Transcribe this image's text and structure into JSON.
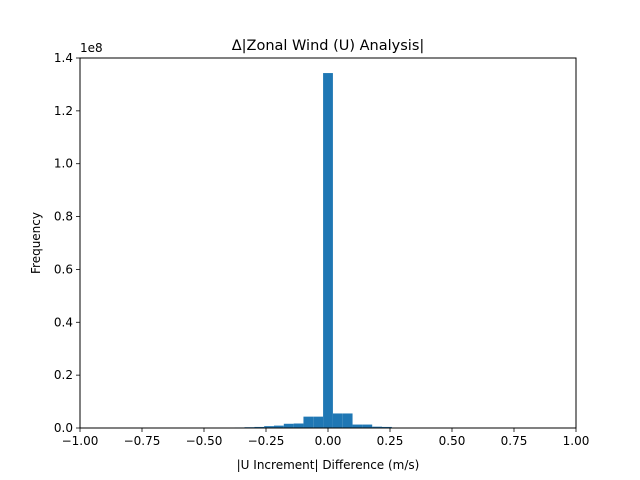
{
  "chart_data": {
    "type": "bar",
    "title": "Δ|Zonal Wind (U) Analysis|",
    "xlabel": "|U Increment| Difference (m/s)",
    "ylabel": "Frequency",
    "y_offset_label": "1e8",
    "xlim": [
      -1.0,
      1.0
    ],
    "ylim": [
      0,
      1.4
    ],
    "x_ticks": [
      -1.0,
      -0.75,
      -0.5,
      -0.25,
      0.0,
      0.25,
      0.5,
      0.75,
      1.0
    ],
    "x_tick_labels": [
      "−1.00",
      "−0.75",
      "−0.50",
      "−0.25",
      "0.00",
      "0.25",
      "0.50",
      "0.75",
      "1.00"
    ],
    "y_ticks": [
      0.0,
      0.2,
      0.4,
      0.6,
      0.8,
      1.0,
      1.2,
      1.4
    ],
    "y_tick_labels": [
      "0.0",
      "0.2",
      "0.4",
      "0.6",
      "0.8",
      "1.0",
      "1.2",
      "1.4"
    ],
    "bar_color": "#1f77b4",
    "bins": [
      {
        "x0": -0.4158,
        "x1": -0.3762,
        "value": 0.001
      },
      {
        "x0": -0.3762,
        "x1": -0.3366,
        "value": 0.002
      },
      {
        "x0": -0.3366,
        "x1": -0.297,
        "value": 0.003
      },
      {
        "x0": -0.297,
        "x1": -0.2574,
        "value": 0.004
      },
      {
        "x0": -0.2574,
        "x1": -0.2178,
        "value": 0.007
      },
      {
        "x0": -0.2178,
        "x1": -0.1782,
        "value": 0.009
      },
      {
        "x0": -0.1782,
        "x1": -0.1386,
        "value": 0.016
      },
      {
        "x0": -0.1386,
        "x1": -0.099,
        "value": 0.017
      },
      {
        "x0": -0.099,
        "x1": -0.0594,
        "value": 0.043
      },
      {
        "x0": -0.0594,
        "x1": -0.0198,
        "value": 0.043
      },
      {
        "x0": -0.0198,
        "x1": 0.0198,
        "value": 1.343
      },
      {
        "x0": 0.0198,
        "x1": 0.0594,
        "value": 0.055
      },
      {
        "x0": 0.0594,
        "x1": 0.099,
        "value": 0.055
      },
      {
        "x0": 0.099,
        "x1": 0.1386,
        "value": 0.013
      },
      {
        "x0": 0.1386,
        "x1": 0.1782,
        "value": 0.013
      },
      {
        "x0": 0.1782,
        "x1": 0.2178,
        "value": 0.005
      },
      {
        "x0": 0.2178,
        "x1": 0.2574,
        "value": 0.004
      }
    ]
  }
}
